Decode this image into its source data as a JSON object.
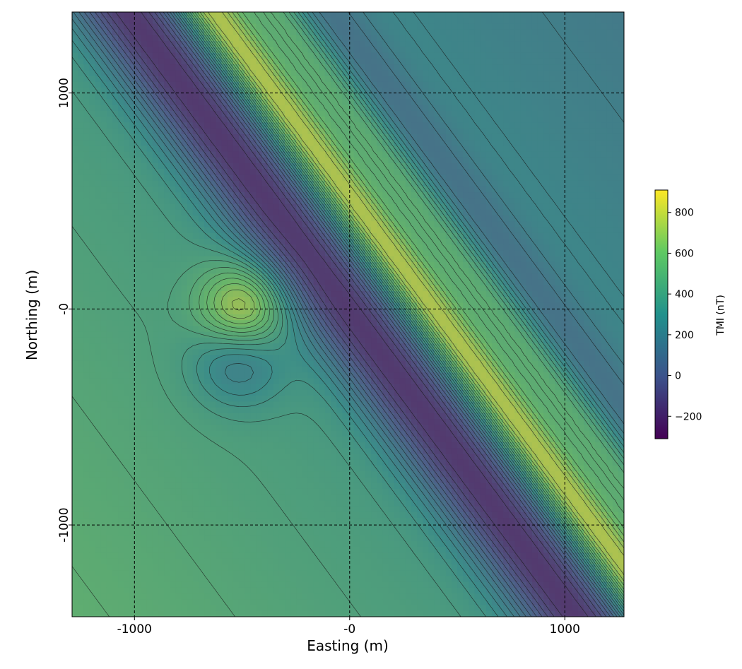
{
  "chart_data": {
    "type": "heatmap",
    "title": "",
    "xlabel": "Easting (m)",
    "ylabel": "Northing (m)",
    "xlim": [
      -1290,
      1275
    ],
    "ylim": [
      -1425,
      1375
    ],
    "x_ticks": [
      {
        "value": -1000,
        "label": "-1000"
      },
      {
        "value": 0,
        "label": "-0"
      },
      {
        "value": 1000,
        "label": "1000"
      }
    ],
    "y_ticks": [
      {
        "value": 1000,
        "label": "1000"
      },
      {
        "value": 0,
        "label": "-0"
      },
      {
        "value": -1000,
        "label": "-1000"
      }
    ],
    "grid": true,
    "grid_style": "dashed",
    "colormap": "viridis",
    "colormap_stops": [
      "#440154",
      "#3b528b",
      "#21918c",
      "#5ec962",
      "#fde725"
    ],
    "colorbar": {
      "label": "TMI (nT)",
      "range": [
        -310,
        910
      ],
      "ticks": [
        {
          "value": 800,
          "label": "800"
        },
        {
          "value": 600,
          "label": "600"
        },
        {
          "value": 400,
          "label": "400"
        },
        {
          "value": 200,
          "label": "200"
        },
        {
          "value": 0,
          "label": "0"
        },
        {
          "value": -200,
          "label": "−200"
        }
      ]
    },
    "field_model": {
      "description": "Total magnetic intensity anomaly: NW-SE trending linear ridge, flanking trough, and a circular dipole centred near (-500, 0)",
      "background": 330,
      "linear_feature": {
        "strike_direction": [
          0.596,
          -0.803
        ],
        "normal": [
          0.803,
          0.596
        ],
        "offset": 300
      },
      "dipole_center": [
        -500,
        0
      ],
      "contour_count": 26
    }
  }
}
